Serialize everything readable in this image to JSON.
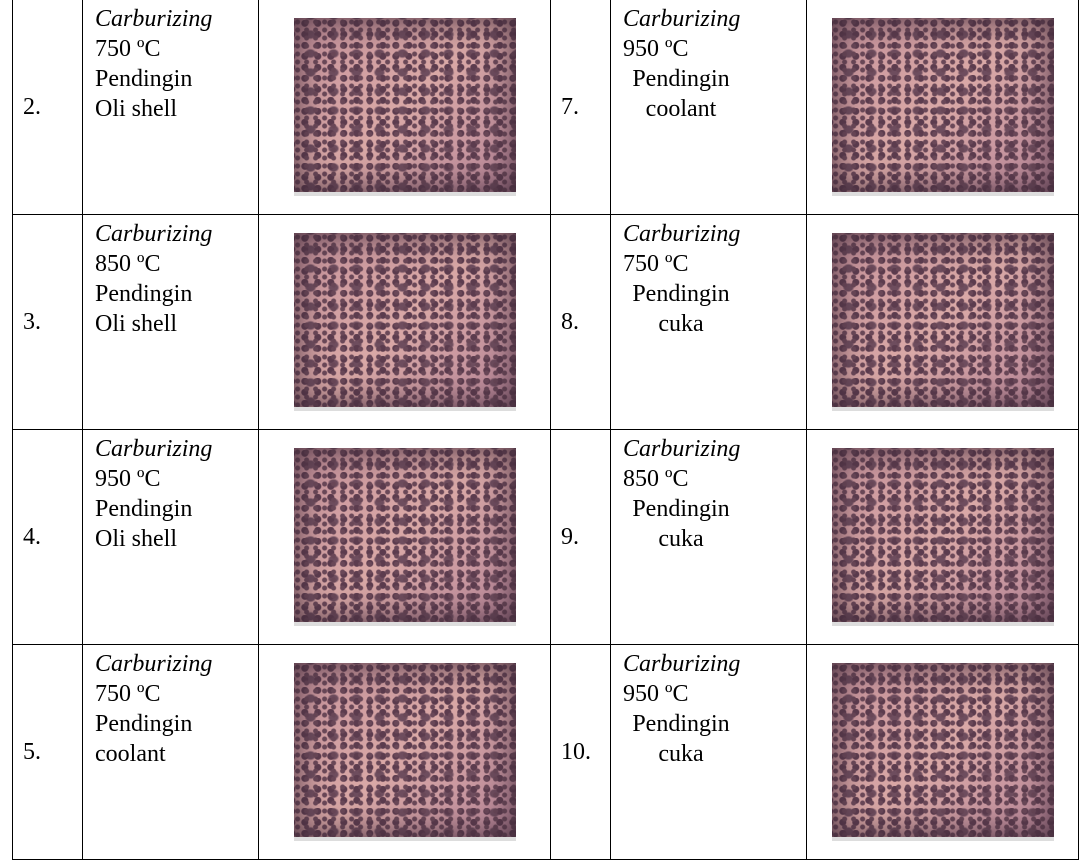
{
  "table": {
    "rows": [
      [
        {
          "number": "2.",
          "lines": [
            "Carburizing",
            "750 ºC",
            "Pendingin",
            "Oli shell"
          ]
        },
        {
          "number": "7.",
          "lines": [
            "Carburizing",
            "950 ºC",
            "Pendingin",
            "coolant"
          ]
        }
      ],
      [
        {
          "number": "3.",
          "lines": [
            "Carburizing",
            "850 ºC",
            "Pendingin",
            "Oli shell"
          ]
        },
        {
          "number": "8.",
          "lines": [
            "Carburizing",
            "750 ºC",
            "Pendingin",
            "cuka"
          ]
        }
      ],
      [
        {
          "number": "4.",
          "lines": [
            "Carburizing",
            "950 ºC",
            "Pendingin",
            "Oli shell"
          ]
        },
        {
          "number": "9.",
          "lines": [
            "Carburizing",
            "850 ºC",
            "Pendingin",
            "cuka"
          ]
        }
      ],
      [
        {
          "number": "5.",
          "lines": [
            "Carburizing",
            "750 ºC",
            "Pendingin",
            "coolant"
          ]
        },
        {
          "number": "10.",
          "lines": [
            "Carburizing",
            "950 ºC",
            "Pendingin",
            "cuka"
          ]
        }
      ]
    ]
  }
}
